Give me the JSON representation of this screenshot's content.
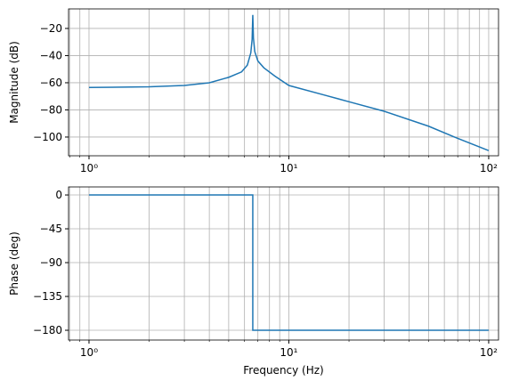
{
  "chart_data": [
    {
      "type": "line",
      "y_label": "Magnitude (dB)",
      "xscale": "log",
      "grid": true,
      "x": [
        1,
        2,
        3,
        4,
        5,
        5.8,
        6.2,
        6.45,
        6.55,
        6.6,
        6.65,
        6.75,
        7,
        7.5,
        8.5,
        10,
        15,
        20,
        30,
        50,
        70,
        100
      ],
      "series": [
        {
          "color": "#1f77b4",
          "values": [
            -63.5,
            -63,
            -62,
            -60,
            -56,
            -52,
            -47,
            -38,
            -28,
            -10,
            -27,
            -37,
            -44,
            -49,
            -55,
            -62,
            -69,
            -74,
            -81,
            -92,
            -101,
            -110
          ]
        }
      ],
      "xlim": [
        0.79,
        112
      ],
      "ylim": [
        -113.8,
        -5.6
      ],
      "xticks": [
        {
          "value": 1,
          "label": "10⁰"
        },
        {
          "value": 10,
          "label": "10¹"
        },
        {
          "value": 100,
          "label": "10²"
        }
      ],
      "yticks": [
        {
          "value": -100,
          "label": "−100"
        },
        {
          "value": -80,
          "label": "−80"
        },
        {
          "value": -60,
          "label": "−60"
        },
        {
          "value": -40,
          "label": "−40"
        },
        {
          "value": -20,
          "label": "−20"
        }
      ]
    },
    {
      "type": "line",
      "x_label": "Frequency (Hz)",
      "y_label": "Phase (deg)",
      "xscale": "log",
      "grid": true,
      "x": [
        1,
        6.6,
        6.6,
        100
      ],
      "series": [
        {
          "color": "#1f77b4",
          "values": [
            0,
            0,
            -180,
            -180
          ]
        }
      ],
      "xlim": [
        0.79,
        112
      ],
      "ylim": [
        -193,
        10.7
      ],
      "xticks": [
        {
          "value": 1,
          "label": "10⁰"
        },
        {
          "value": 10,
          "label": "10¹"
        },
        {
          "value": 100,
          "label": "10²"
        }
      ],
      "yticks": [
        {
          "value": -180,
          "label": "−180"
        },
        {
          "value": -135,
          "label": "−135"
        },
        {
          "value": -90,
          "label": "−90"
        },
        {
          "value": -45,
          "label": "−45"
        },
        0
      ]
    }
  ]
}
